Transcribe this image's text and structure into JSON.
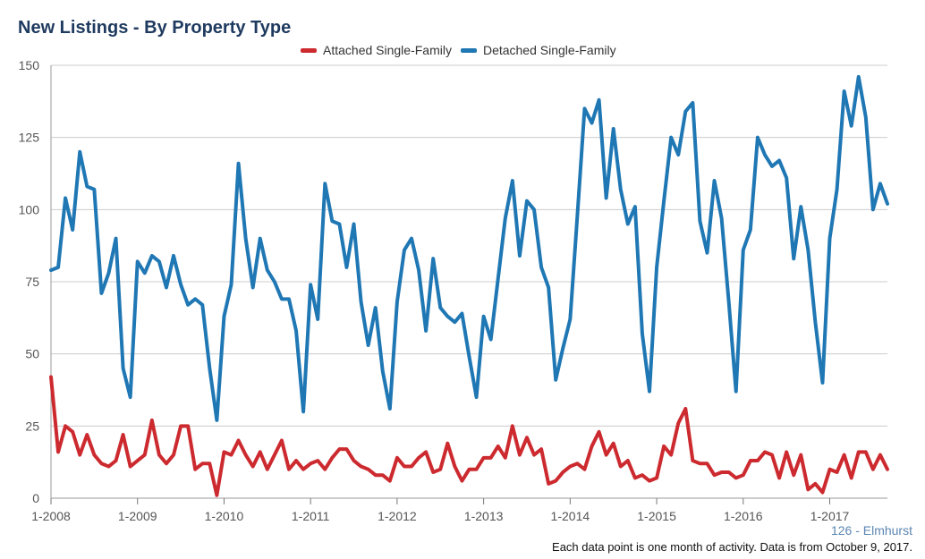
{
  "chart_data": {
    "type": "line",
    "title": "New Listings - By Property Type",
    "xlabel": "",
    "ylabel": "",
    "ylim": [
      0,
      150
    ],
    "yticks": [
      0,
      25,
      50,
      75,
      100,
      125,
      150
    ],
    "x_start": "1-2008",
    "x_tick_labels": [
      "1-2008",
      "1-2009",
      "1-2010",
      "1-2011",
      "1-2012",
      "1-2013",
      "1-2014",
      "1-2015",
      "1-2016",
      "1-2017"
    ],
    "grid": true,
    "legend_position": "top-center",
    "series": [
      {
        "name": "Attached Single-Family",
        "color": "#cc2a2f",
        "values": [
          42,
          16,
          25,
          23,
          15,
          22,
          15,
          12,
          11,
          13,
          22,
          11,
          13,
          15,
          27,
          15,
          12,
          15,
          25,
          25,
          10,
          12,
          12,
          1,
          16,
          15,
          20,
          15,
          11,
          16,
          10,
          15,
          20,
          10,
          13,
          10,
          12,
          13,
          10,
          14,
          17,
          17,
          13,
          11,
          10,
          8,
          8,
          6,
          14,
          11,
          11,
          14,
          16,
          9,
          10,
          19,
          11,
          6,
          10,
          10,
          14,
          14,
          18,
          14,
          25,
          15,
          21,
          15,
          17,
          5,
          6,
          9,
          11,
          12,
          10,
          18,
          23,
          15,
          19,
          11,
          13,
          7,
          8,
          6,
          7,
          18,
          15,
          26,
          31,
          13,
          12,
          12,
          8,
          9,
          9,
          7,
          8,
          13,
          13,
          16,
          15,
          7,
          16,
          8,
          15,
          3,
          5,
          2,
          10,
          9,
          15,
          7,
          16,
          16,
          10,
          15,
          10
        ]
      },
      {
        "name": "Detached Single-Family",
        "color": "#1f77b4",
        "values": [
          79,
          80,
          104,
          93,
          120,
          108,
          107,
          71,
          78,
          90,
          45,
          35,
          82,
          78,
          84,
          82,
          73,
          84,
          74,
          67,
          69,
          67,
          45,
          27,
          63,
          74,
          116,
          90,
          73,
          90,
          79,
          75,
          69,
          69,
          58,
          30,
          74,
          62,
          109,
          96,
          95,
          80,
          95,
          68,
          53,
          66,
          44,
          31,
          68,
          86,
          90,
          79,
          58,
          83,
          66,
          63,
          61,
          64,
          49,
          35,
          63,
          55,
          76,
          97,
          110,
          84,
          103,
          100,
          80,
          73,
          41,
          52,
          62,
          98,
          135,
          130,
          138,
          104,
          128,
          107,
          95,
          101,
          57,
          37,
          80,
          103,
          125,
          119,
          134,
          137,
          96,
          85,
          110,
          97,
          68,
          37,
          86,
          93,
          125,
          119,
          115,
          117,
          111,
          83,
          101,
          86,
          61,
          40,
          90,
          107,
          141,
          129,
          146,
          132,
          100,
          109,
          102
        ]
      }
    ]
  },
  "source_label": "126 - Elmhurst",
  "footnote": "Each data point is one month of activity. Data is from October 9, 2017."
}
